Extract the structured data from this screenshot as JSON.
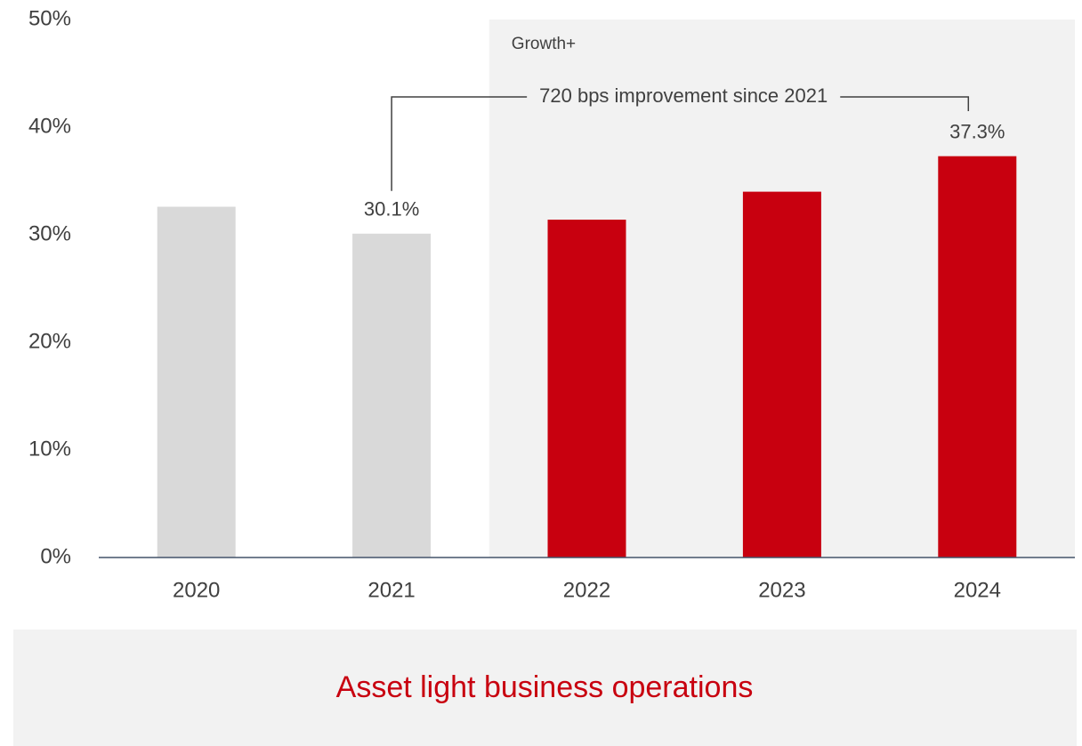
{
  "chart_data": {
    "type": "bar",
    "categories": [
      "2020",
      "2021",
      "2022",
      "2023",
      "2024"
    ],
    "values": [
      32.6,
      30.1,
      31.4,
      34.0,
      37.3
    ],
    "value_labels": [
      null,
      "30.1%",
      null,
      null,
      "37.3%"
    ],
    "colors": [
      "#d9d9d9",
      "#d9d9d9",
      "#c8000f",
      "#c8000f",
      "#c8000f"
    ],
    "ylim": [
      0,
      50
    ],
    "yticks": [
      {
        "value": 0,
        "label": "0%"
      },
      {
        "value": 10,
        "label": "10%"
      },
      {
        "value": 20,
        "label": "20%"
      },
      {
        "value": 30,
        "label": "30%"
      },
      {
        "value": 40,
        "label": "40%"
      },
      {
        "value": 50,
        "label": "50%"
      }
    ],
    "grid": false,
    "highlight": {
      "label": "Growth+",
      "start": "2022"
    },
    "annotation": "720 bps improvement since 2021",
    "footer": "Asset light business operations"
  }
}
